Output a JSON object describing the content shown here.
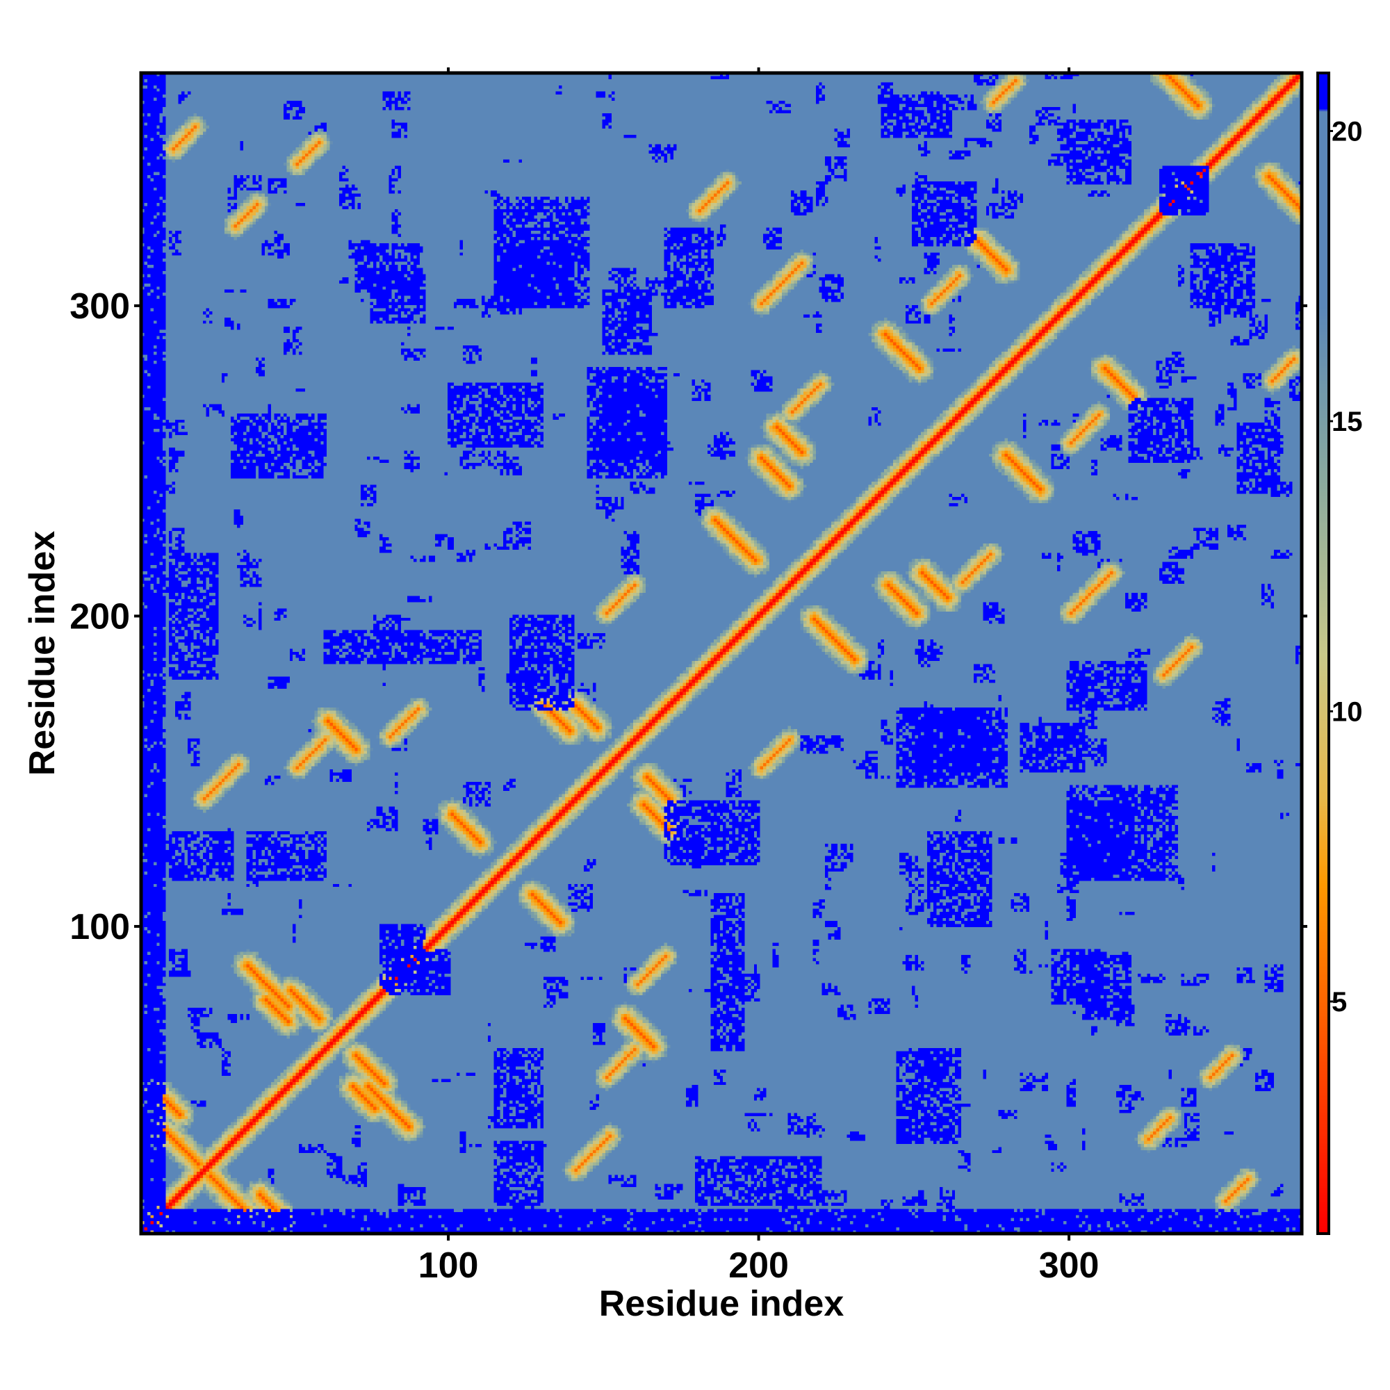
{
  "chart_data": {
    "type": "heatmap",
    "description_of_matrix": "",
    "n_residues": 375,
    "xlabel": "Residue index",
    "ylabel": "Residue index",
    "xlim": [
      1,
      375
    ],
    "ylim": [
      1,
      375
    ],
    "x_ticks": [
      100,
      200,
      300
    ],
    "y_ticks": [
      100,
      200,
      300
    ],
    "x_tick_labels": [
      "100",
      "200",
      "300"
    ],
    "y_tick_labels": [
      "100",
      "200",
      "300"
    ],
    "colorbar": {
      "range": [
        1,
        21
      ],
      "ticks": [
        5,
        10,
        15,
        20
      ],
      "tick_labels": [
        "5",
        "10",
        "15",
        "20"
      ],
      "stops": [
        {
          "value": 1,
          "color": "#ff0000"
        },
        {
          "value": 4,
          "color": "#ff4d00"
        },
        {
          "value": 7,
          "color": "#ff9900"
        },
        {
          "value": 8.5,
          "color": "#e8b84a"
        },
        {
          "value": 11,
          "color": "#c8c88a"
        },
        {
          "value": 14,
          "color": "#8aaa9e"
        },
        {
          "value": 17,
          "color": "#5b87b8"
        },
        {
          "value": 20,
          "color": "#5b87b8"
        },
        {
          "value": 20.01,
          "color": "#0000ff"
        }
      ]
    },
    "background_value": 18,
    "saturated_color": "#0000ff",
    "structure": {
      "diagonal": {
        "width": 1.2
      },
      "antiparallel_contacts": [
        {
          "i0": 7,
          "j0": 33,
          "len": 12
        },
        {
          "i0": 34,
          "j0": 86,
          "len": 14
        },
        {
          "i0": 48,
          "j0": 78,
          "len": 10
        },
        {
          "i0": 40,
          "j0": 75,
          "len": 8
        },
        {
          "i0": 100,
          "j0": 135,
          "len": 10
        },
        {
          "i0": 130,
          "j0": 170,
          "len": 9
        },
        {
          "i0": 185,
          "j0": 230,
          "len": 14
        },
        {
          "i0": 200,
          "j0": 250,
          "len": 10
        },
        {
          "i0": 240,
          "j0": 290,
          "len": 12
        },
        {
          "i0": 270,
          "j0": 320,
          "len": 10
        },
        {
          "i0": 330,
          "j0": 375,
          "len": 12
        },
        {
          "i0": 5,
          "j0": 45,
          "len": 8
        },
        {
          "i0": 60,
          "j0": 165,
          "len": 10
        },
        {
          "i0": 140,
          "j0": 170,
          "len": 8
        },
        {
          "i0": 205,
          "j0": 260,
          "len": 9
        }
      ],
      "parallel_contacts": [
        {
          "i0": 20,
          "j0": 140,
          "len": 12
        },
        {
          "i0": 50,
          "j0": 150,
          "len": 10
        },
        {
          "i0": 80,
          "j0": 160,
          "len": 10
        },
        {
          "i0": 150,
          "j0": 200,
          "len": 10
        },
        {
          "i0": 200,
          "j0": 300,
          "len": 14
        },
        {
          "i0": 210,
          "j0": 265,
          "len": 10
        },
        {
          "i0": 255,
          "j0": 300,
          "len": 10
        },
        {
          "i0": 275,
          "j0": 365,
          "len": 8
        },
        {
          "i0": 30,
          "j0": 325,
          "len": 8
        },
        {
          "i0": 10,
          "j0": 350,
          "len": 8
        },
        {
          "i0": 330,
          "j0": 180,
          "len": 10
        },
        {
          "i0": 345,
          "j0": 50,
          "len": 8
        }
      ],
      "far_blocks": [
        {
          "i": [
            300,
            320
          ],
          "j": [
            115,
            140
          ]
        },
        {
          "i": [
            295,
            312
          ],
          "j": [
            75,
            92
          ]
        },
        {
          "i": [
            115,
            145
          ],
          "j": [
            300,
            335
          ]
        },
        {
          "i": [
            80,
            100
          ],
          "j": [
            78,
            92
          ]
        },
        {
          "i": [
            35,
            60
          ],
          "j": [
            115,
            130
          ]
        },
        {
          "i": [
            10,
            30
          ],
          "j": [
            115,
            130
          ]
        },
        {
          "i": [
            255,
            275
          ],
          "j": [
            100,
            130
          ]
        },
        {
          "i": [
            250,
            275
          ],
          "j": [
            150,
            170
          ]
        },
        {
          "i": [
            170,
            185
          ],
          "j": [
            300,
            325
          ]
        },
        {
          "i": [
            145,
            170
          ],
          "j": [
            245,
            280
          ]
        },
        {
          "i": [
            150,
            165
          ],
          "j": [
            285,
            305
          ]
        },
        {
          "i": [
            70,
            90
          ],
          "j": [
            305,
            320
          ]
        },
        {
          "i": [
            1,
            8
          ],
          "j": [
            1,
            375
          ]
        },
        {
          "i": [
            1,
            375
          ],
          "j": [
            1,
            7
          ]
        },
        {
          "i": [
            330,
            345
          ],
          "j": [
            330,
            345
          ]
        },
        {
          "i": [
            355,
            368
          ],
          "j": [
            240,
            262
          ]
        },
        {
          "i": [
            300,
            320
          ],
          "j": [
            340,
            360
          ]
        },
        {
          "i": [
            250,
            270
          ],
          "j": [
            320,
            340
          ]
        },
        {
          "i": [
            185,
            195
          ],
          "j": [
            60,
            110
          ]
        },
        {
          "i": [
            120,
            140
          ],
          "j": [
            170,
            200
          ]
        },
        {
          "i": [
            30,
            60
          ],
          "j": [
            245,
            265
          ]
        },
        {
          "i": [
            10,
            25
          ],
          "j": [
            180,
            220
          ]
        }
      ]
    }
  }
}
